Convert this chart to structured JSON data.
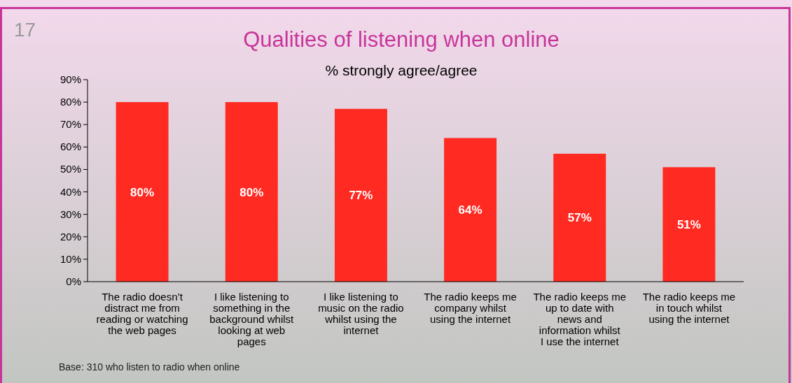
{
  "chart_data": {
    "type": "bar",
    "title": "Qualities of listening when online",
    "subtitle": "% strongly agree/agree",
    "categories": [
      "The radio doesn’t distract me from reading or watching the web pages",
      "I like listening to something in the background whilst looking at web pages",
      "I like listening to music on the radio whilst using the internet",
      "The radio keeps me company whilst using the internet",
      "The radio keeps me up to date with news and information whilst I use the internet",
      "The radio keeps me in touch whilst using the internet"
    ],
    "values": [
      80,
      80,
      77,
      64,
      57,
      51
    ],
    "value_labels": [
      "80%",
      "80%",
      "77%",
      "64%",
      "57%",
      "51%"
    ],
    "color": "#ff2a22",
    "ylim": [
      0,
      90
    ],
    "yticks": [
      {
        "value": 0,
        "label": "0%"
      },
      {
        "value": 10,
        "label": "10%"
      },
      {
        "value": 20,
        "label": "20%"
      },
      {
        "value": 30,
        "label": "30%"
      },
      {
        "value": 40,
        "label": "40%"
      },
      {
        "value": 50,
        "label": "50%"
      },
      {
        "value": 60,
        "label": "60%"
      },
      {
        "value": 70,
        "label": "70%"
      },
      {
        "value": 80,
        "label": "80%"
      },
      {
        "value": 90,
        "label": "90%"
      }
    ],
    "grid": false,
    "annotations": [
      "17",
      "Base: 310 who listen to radio when online"
    ]
  }
}
